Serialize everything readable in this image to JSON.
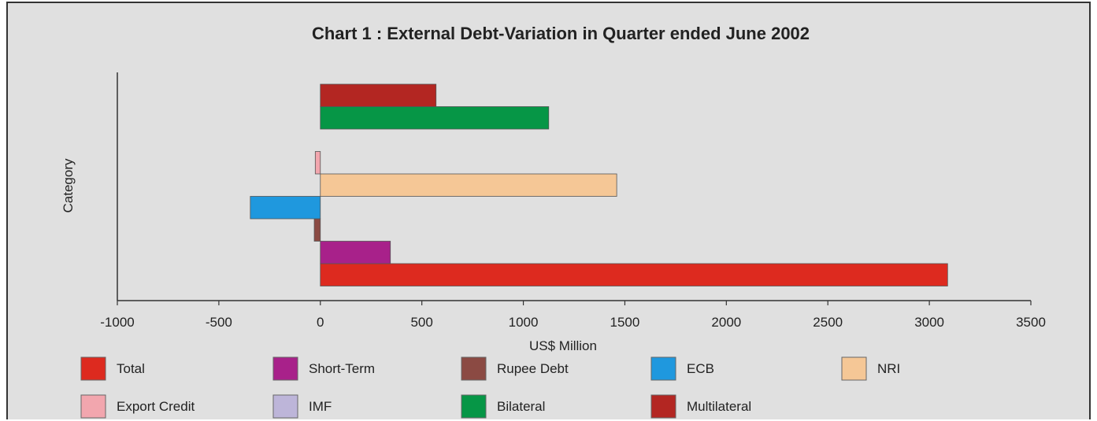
{
  "chart_data": {
    "type": "bar",
    "orientation": "horizontal",
    "title": "Chart 1 : External Debt-Variation in Quarter ended June 2002",
    "xlabel": "US$ Million",
    "ylabel": "Category",
    "xlim": [
      -1000,
      3500
    ],
    "xticks": [
      "-1000",
      "-500",
      "0",
      "500",
      "1000",
      "1500",
      "2000",
      "2500",
      "3000",
      "3500"
    ],
    "grid": false,
    "legend_position": "bottom",
    "series": [
      {
        "name": "Total",
        "value": 3090,
        "color": "#dd2a1f"
      },
      {
        "name": "Short-Term",
        "value": 345,
        "color": "#a8218a"
      },
      {
        "name": "Rupee Debt",
        "value": -30,
        "color": "#8b4a43"
      },
      {
        "name": "ECB",
        "value": -345,
        "color": "#1f98de"
      },
      {
        "name": "NRI",
        "value": 1460,
        "color": "#f5c796"
      },
      {
        "name": "Export Credit",
        "value": -25,
        "color": "#f2a6ae"
      },
      {
        "name": "IMF",
        "value": 0,
        "color": "#bdb5d9"
      },
      {
        "name": "Bilateral",
        "value": 1125,
        "color": "#069646"
      },
      {
        "name": "Multilateral",
        "value": 570,
        "color": "#b32622"
      }
    ]
  }
}
